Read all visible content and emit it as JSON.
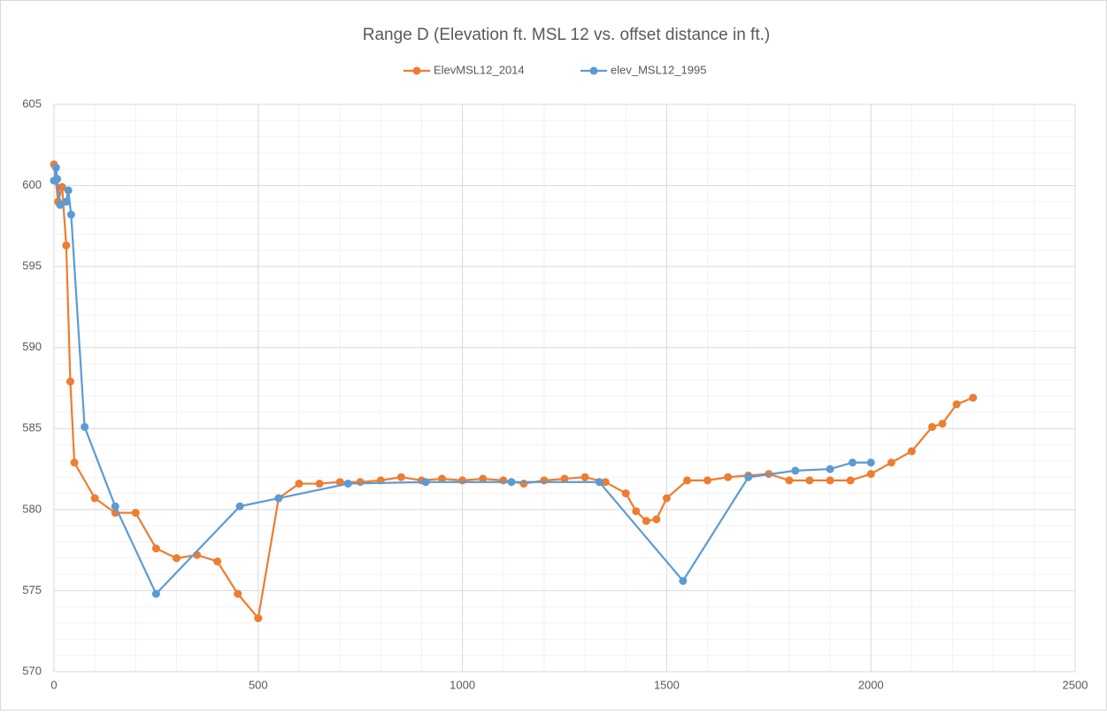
{
  "chart_data": {
    "type": "scatter_line",
    "title": "Range D (Elevation ft. MSL 12 vs. offset distance in ft.)",
    "xlim": [
      0,
      2500
    ],
    "xticks": [
      0,
      500,
      1000,
      1500,
      2000,
      2500
    ],
    "ylim": [
      570,
      605
    ],
    "yticks": [
      570,
      575,
      580,
      585,
      590,
      595,
      600,
      605
    ],
    "grid": true,
    "minor_grid": true,
    "legend": "top",
    "series": [
      {
        "name": "ElevMSL12_2014",
        "color": "#ed7d31",
        "x": [
          0,
          10,
          20,
          30,
          40,
          50,
          100,
          150,
          200,
          250,
          300,
          350,
          400,
          450,
          500,
          550,
          600,
          650,
          700,
          750,
          800,
          850,
          900,
          950,
          1000,
          1050,
          1100,
          1150,
          1200,
          1250,
          1300,
          1350,
          1400,
          1425,
          1450,
          1475,
          1500,
          1550,
          1600,
          1650,
          1700,
          1750,
          1800,
          1850,
          1900,
          1950,
          2000,
          2050,
          2100,
          2150,
          2175,
          2210,
          2250
        ],
        "values": [
          601.3,
          599.0,
          599.9,
          596.3,
          587.9,
          582.9,
          580.7,
          579.8,
          579.8,
          577.6,
          577.0,
          577.2,
          576.8,
          574.8,
          573.3,
          580.7,
          581.6,
          581.6,
          581.7,
          581.7,
          581.8,
          582.0,
          581.8,
          581.9,
          581.8,
          581.9,
          581.8,
          581.6,
          581.8,
          581.9,
          582.0,
          581.7,
          581.0,
          579.9,
          579.3,
          579.4,
          580.7,
          581.8,
          581.8,
          582.0,
          582.1,
          582.2,
          581.8,
          581.8,
          581.8,
          581.8,
          582.2,
          582.9,
          583.6,
          585.1,
          585.3,
          586.5,
          586.9
        ]
      },
      {
        "name": "elev_MSL12_1995",
        "color": "#5b9bd5",
        "x": [
          0,
          5,
          8,
          15,
          30,
          35,
          42,
          75,
          150,
          250,
          455,
          550,
          720,
          910,
          1120,
          1335,
          1540,
          1700,
          1815,
          1900,
          1955,
          2000
        ],
        "values": [
          600.3,
          601.1,
          600.4,
          598.8,
          599.0,
          599.7,
          598.2,
          585.1,
          580.2,
          574.8,
          580.2,
          580.7,
          581.6,
          581.7,
          581.7,
          581.7,
          575.6,
          582.0,
          582.4,
          582.5,
          582.9,
          582.9
        ]
      }
    ]
  }
}
